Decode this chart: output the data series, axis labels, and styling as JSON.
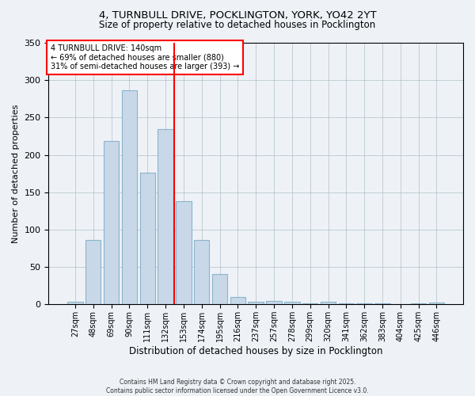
{
  "title_line1": "4, TURNBULL DRIVE, POCKLINGTON, YORK, YO42 2YT",
  "title_line2": "Size of property relative to detached houses in Pocklington",
  "xlabel": "Distribution of detached houses by size in Pocklington",
  "ylabel": "Number of detached properties",
  "categories": [
    "27sqm",
    "48sqm",
    "69sqm",
    "90sqm",
    "111sqm",
    "132sqm",
    "153sqm",
    "174sqm",
    "195sqm",
    "216sqm",
    "237sqm",
    "257sqm",
    "278sqm",
    "299sqm",
    "320sqm",
    "341sqm",
    "362sqm",
    "383sqm",
    "404sqm",
    "425sqm",
    "446sqm"
  ],
  "values": [
    3,
    86,
    219,
    286,
    176,
    234,
    138,
    86,
    41,
    10,
    3,
    5,
    3,
    1,
    3,
    1,
    1,
    1,
    0,
    1,
    2
  ],
  "bar_color": "#c8d8e8",
  "bar_edgecolor": "#8ab4cc",
  "vline_x": 5.5,
  "vline_color": "red",
  "annotation_title": "4 TURNBULL DRIVE: 140sqm",
  "annotation_line2": "← 69% of detached houses are smaller (880)",
  "annotation_line3": "31% of semi-detached houses are larger (393) →",
  "annotation_box_color": "white",
  "annotation_box_edgecolor": "red",
  "ylim": [
    0,
    350
  ],
  "yticks": [
    0,
    50,
    100,
    150,
    200,
    250,
    300,
    350
  ],
  "footer_line1": "Contains HM Land Registry data © Crown copyright and database right 2025.",
  "footer_line2": "Contains public sector information licensed under the Open Government Licence v3.0.",
  "bg_color": "#eef2f7"
}
